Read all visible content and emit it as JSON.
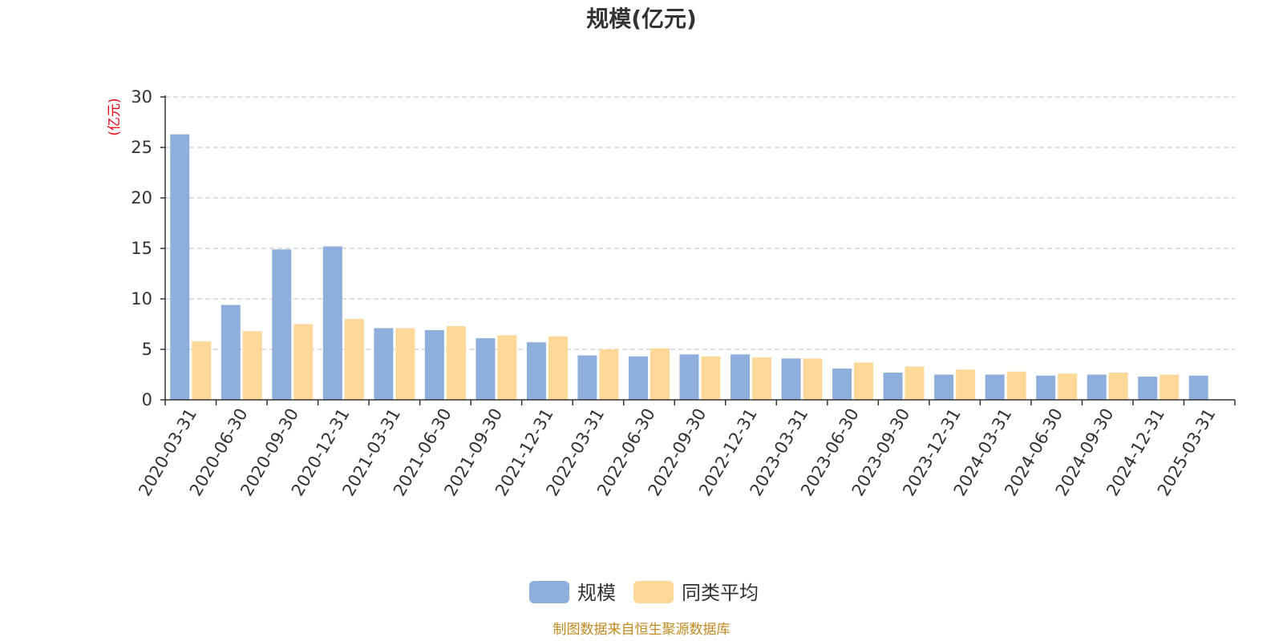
{
  "chart_data": {
    "type": "bar",
    "title": "规模(亿元)",
    "ylabel": "(亿元)",
    "ylim": [
      0,
      30
    ],
    "yticks": [
      "0",
      "5",
      "10",
      "15",
      "20",
      "25",
      "30"
    ],
    "grid": true,
    "legend_position": "bottom-center",
    "categories": [
      "2020-03-31",
      "2020-06-30",
      "2020-09-30",
      "2020-12-31",
      "2021-03-31",
      "2021-06-30",
      "2021-09-30",
      "2021-12-31",
      "2022-03-31",
      "2022-06-30",
      "2022-09-30",
      "2022-12-31",
      "2023-03-31",
      "2023-06-30",
      "2023-09-30",
      "2023-12-31",
      "2024-03-31",
      "2024-06-30",
      "2024-09-30",
      "2024-12-31",
      "2025-03-31"
    ],
    "series": [
      {
        "name": "规模",
        "color": "#8eaedb",
        "values": [
          26.3,
          9.4,
          14.9,
          15.2,
          7.1,
          6.9,
          6.1,
          5.7,
          4.4,
          4.3,
          4.5,
          4.5,
          4.1,
          3.1,
          2.7,
          2.5,
          2.5,
          2.4,
          2.5,
          2.3,
          2.4
        ]
      },
      {
        "name": "同类平均",
        "color": "#fdd899",
        "values": [
          5.8,
          6.8,
          7.5,
          8.0,
          7.1,
          7.3,
          6.4,
          6.3,
          5.0,
          5.1,
          4.3,
          4.2,
          4.1,
          3.7,
          3.3,
          3.0,
          2.8,
          2.6,
          2.7,
          2.5,
          null
        ]
      }
    ]
  },
  "footer": {
    "source": "制图数据来自恒生聚源数据库"
  }
}
